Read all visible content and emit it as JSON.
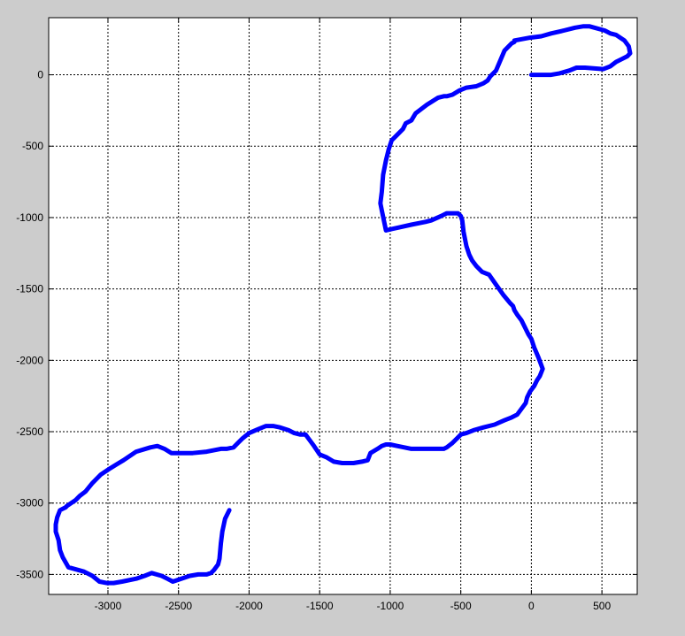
{
  "chart_data": {
    "type": "line",
    "title": "",
    "xlabel": "",
    "ylabel": "",
    "xlim": [
      -3420,
      750
    ],
    "ylim": [
      -3640,
      400
    ],
    "grid": true,
    "xticks": [
      -3000,
      -2500,
      -2000,
      -1500,
      -1000,
      -500,
      0,
      500
    ],
    "yticks": [
      0,
      -500,
      -1000,
      -1500,
      -2000,
      -2500,
      -3000,
      -3500
    ],
    "xtick_labels": [
      "-3000",
      "-2500",
      "-2000",
      "-1500",
      "-1000",
      "-500",
      "0",
      "500"
    ],
    "ytick_labels": [
      "0",
      "-500",
      "-1000",
      "-1500",
      "-2000",
      "-2500",
      "-3000",
      "-3500"
    ],
    "series": [
      {
        "color": "#0000ff",
        "x": [
          0,
          140,
          200,
          270,
          320,
          380,
          510,
          560,
          600,
          640,
          680,
          700,
          690,
          660,
          600,
          560,
          520,
          410,
          370,
          310,
          230,
          140,
          70,
          -10,
          -120,
          -120,
          -140,
          -190,
          -250,
          -290,
          -310,
          -340,
          -390,
          -460,
          -510,
          -560,
          -600,
          -620,
          -660,
          -740,
          -820,
          -850,
          -890,
          -910,
          -950,
          -990,
          -1010,
          -1030,
          -1050,
          -1060,
          -1070,
          -1060,
          -1030,
          -990,
          -940,
          -850,
          -750,
          -710,
          -640,
          -600,
          -560,
          -520,
          -500,
          -490,
          -480,
          -460,
          -440,
          -420,
          -390,
          -350,
          -300,
          -250,
          -200,
          -150,
          -130,
          -120,
          -100,
          -70,
          -40,
          -20,
          0,
          20,
          50,
          80,
          60,
          40,
          20,
          -10,
          -30,
          -40,
          -70,
          -100,
          -140,
          -190,
          -260,
          -340,
          -410,
          -460,
          -500,
          -520,
          -560,
          -600,
          -620,
          -700,
          -780,
          -850,
          -950,
          -1000,
          -1030,
          -1060,
          -1090,
          -1140,
          -1160,
          -1200,
          -1260,
          -1340,
          -1400,
          -1450,
          -1500,
          -1540,
          -1570,
          -1600,
          -1640,
          -1680,
          -1720,
          -1780,
          -1830,
          -1880,
          -1930,
          -2000,
          -2050,
          -2080,
          -2110,
          -2160,
          -2200,
          -2300,
          -2400,
          -2550,
          -2600,
          -2650,
          -2700,
          -2800,
          -2830,
          -2890,
          -2940,
          -2990,
          -3050,
          -3110,
          -3160,
          -3200,
          -3230,
          -3260,
          -3290,
          -3300,
          -3320,
          -3340,
          -3360,
          -3370,
          -3370,
          -3350,
          -3340,
          -3320,
          -3280,
          -3170,
          -3110,
          -3060,
          -3010,
          -2960,
          -2900,
          -2800,
          -2740,
          -2690,
          -2620,
          -2580,
          -2540,
          -2480,
          -2420,
          -2360,
          -2300,
          -2270,
          -2250,
          -2220,
          -2210,
          -2200,
          -2190,
          -2170,
          -2140
        ],
        "y": [
          0,
          0,
          10,
          30,
          50,
          50,
          40,
          60,
          90,
          110,
          130,
          150,
          200,
          240,
          280,
          290,
          310,
          340,
          340,
          330,
          310,
          290,
          270,
          260,
          240,
          230,
          220,
          170,
          30,
          -10,
          -40,
          -60,
          -80,
          -90,
          -110,
          -140,
          -150,
          -150,
          -160,
          -210,
          -270,
          -320,
          -340,
          -380,
          -420,
          -460,
          -520,
          -600,
          -700,
          -820,
          -900,
          -950,
          -1090,
          -1080,
          -1070,
          -1050,
          -1030,
          -1020,
          -990,
          -970,
          -970,
          -970,
          -990,
          -1020,
          -1100,
          -1200,
          -1260,
          -1300,
          -1340,
          -1380,
          -1400,
          -1470,
          -1540,
          -1600,
          -1620,
          -1650,
          -1680,
          -1720,
          -1780,
          -1820,
          -1850,
          -1910,
          -1980,
          -2060,
          -2110,
          -2140,
          -2180,
          -2220,
          -2260,
          -2300,
          -2340,
          -2380,
          -2400,
          -2420,
          -2450,
          -2470,
          -2490,
          -2510,
          -2520,
          -2540,
          -2580,
          -2610,
          -2620,
          -2620,
          -2620,
          -2620,
          -2600,
          -2590,
          -2590,
          -2600,
          -2620,
          -2650,
          -2700,
          -2710,
          -2720,
          -2720,
          -2710,
          -2680,
          -2660,
          -2600,
          -2560,
          -2520,
          -2520,
          -2510,
          -2490,
          -2470,
          -2460,
          -2460,
          -2480,
          -2510,
          -2550,
          -2580,
          -2610,
          -2620,
          -2620,
          -2640,
          -2650,
          -2650,
          -2620,
          -2600,
          -2610,
          -2640,
          -2660,
          -2700,
          -2730,
          -2760,
          -2800,
          -2860,
          -2920,
          -2950,
          -2980,
          -3000,
          -3020,
          -3030,
          -3040,
          -3050,
          -3100,
          -3150,
          -3200,
          -3260,
          -3330,
          -3380,
          -3450,
          -3480,
          -3510,
          -3550,
          -3560,
          -3560,
          -3550,
          -3530,
          -3510,
          -3490,
          -3510,
          -3530,
          -3550,
          -3530,
          -3510,
          -3500,
          -3500,
          -3490,
          -3470,
          -3430,
          -3390,
          -3280,
          -3200,
          -3110,
          -3050
        ]
      }
    ]
  }
}
